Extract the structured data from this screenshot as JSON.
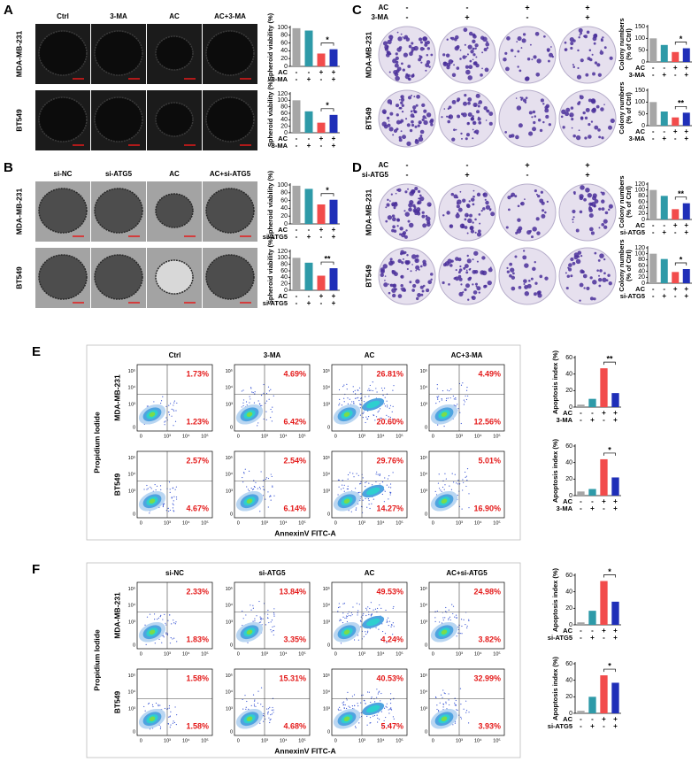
{
  "panels": [
    {
      "label": "A",
      "kind": "spheroid",
      "columns": [
        "Ctrl",
        "3-MA",
        "AC",
        "AC+3-MA"
      ],
      "rows": [
        {
          "name": "MDA-MB-231",
          "chart": {
            "type": "bar",
            "ylabel": "Spheroid viability (%)",
            "ylim": [
              0,
              100
            ],
            "yticks": [
              0,
              20,
              40,
              60,
              80,
              100
            ],
            "values": [
              98,
              92,
              33,
              44
            ],
            "colors": [
              "#a6a6a6",
              "#2e9aa8",
              "#f24c4c",
              "#1f2fb8"
            ],
            "significance": "*",
            "factors": [
              {
                "name": "AC",
                "signs": [
                  "-",
                  "-",
                  "+",
                  "+"
                ]
              },
              {
                "name": "3-MA",
                "signs": [
                  "-",
                  "+",
                  "-",
                  "+"
                ]
              }
            ]
          }
        },
        {
          "name": "BT549",
          "chart": {
            "type": "bar",
            "ylabel": "Spheroid viability (%)",
            "ylim": [
              0,
              120
            ],
            "yticks": [
              0,
              20,
              40,
              60,
              80,
              100,
              120
            ],
            "values": [
              100,
              66,
              31,
              55
            ],
            "colors": [
              "#a6a6a6",
              "#2e9aa8",
              "#f24c4c",
              "#1f2fb8"
            ],
            "significance": "*",
            "factors": [
              {
                "name": "AC",
                "signs": [
                  "-",
                  "-",
                  "+",
                  "+"
                ]
              },
              {
                "name": "3-MA",
                "signs": [
                  "-",
                  "+",
                  "-",
                  "+"
                ]
              }
            ]
          }
        }
      ]
    },
    {
      "label": "B",
      "kind": "spheroid",
      "columns": [
        "si-NC",
        "si-ATG5",
        "AC",
        "AC+si-ATG5"
      ],
      "rows": [
        {
          "name": "MDA-MB-231",
          "chart": {
            "type": "bar",
            "ylabel": "Spheroid viability (%)",
            "ylim": [
              0,
              100
            ],
            "yticks": [
              0,
              20,
              40,
              60,
              80,
              100
            ],
            "values": [
              98,
              90,
              50,
              62
            ],
            "colors": [
              "#a6a6a6",
              "#2e9aa8",
              "#f24c4c",
              "#1f2fb8"
            ],
            "significance": "*",
            "factors": [
              {
                "name": "AC",
                "signs": [
                  "-",
                  "-",
                  "+",
                  "+"
                ]
              },
              {
                "name": "si-ATG5",
                "signs": [
                  "-",
                  "+",
                  "-",
                  "+"
                ]
              }
            ]
          }
        },
        {
          "name": "BT549",
          "chart": {
            "type": "bar",
            "ylabel": "Spheroid viability (%)",
            "ylim": [
              0,
              120
            ],
            "yticks": [
              0,
              20,
              40,
              60,
              80,
              100,
              120
            ],
            "values": [
              100,
              85,
              45,
              68
            ],
            "colors": [
              "#a6a6a6",
              "#2e9aa8",
              "#f24c4c",
              "#1f2fb8"
            ],
            "significance": "**",
            "factors": [
              {
                "name": "AC",
                "signs": [
                  "-",
                  "-",
                  "+",
                  "+"
                ]
              },
              {
                "name": "si-ATG5",
                "signs": [
                  "-",
                  "+",
                  "-",
                  "+"
                ]
              }
            ]
          }
        }
      ]
    },
    {
      "label": "C",
      "kind": "colony",
      "treatments": [
        {
          "name": "AC",
          "signs": [
            "-",
            "-",
            "+",
            "+"
          ]
        },
        {
          "name": "3-MA",
          "signs": [
            "-",
            "+",
            "-",
            "+"
          ]
        }
      ],
      "rows": [
        {
          "name": "MDA-MB-231",
          "chart": {
            "type": "bar",
            "ylabel": [
              "Colony numbers",
              "(% of Ctrl)"
            ],
            "ylim": [
              0,
              150
            ],
            "yticks": [
              0,
              50,
              100,
              150
            ],
            "values": [
              100,
              72,
              42,
              58
            ],
            "colors": [
              "#a6a6a6",
              "#2e9aa8",
              "#f24c4c",
              "#1f2fb8"
            ],
            "significance": "*",
            "factors": [
              {
                "name": "AC",
                "signs": [
                  "-",
                  "-",
                  "+",
                  "+"
                ]
              },
              {
                "name": "3-MA",
                "signs": [
                  "-",
                  "+",
                  "-",
                  "+"
                ]
              }
            ]
          }
        },
        {
          "name": "BT549",
          "chart": {
            "type": "bar",
            "ylabel": [
              "Colony numbers",
              "(% of Ctrl)"
            ],
            "ylim": [
              0,
              150
            ],
            "yticks": [
              0,
              50,
              100,
              150
            ],
            "values": [
              100,
              60,
              35,
              55
            ],
            "colors": [
              "#a6a6a6",
              "#2e9aa8",
              "#f24c4c",
              "#1f2fb8"
            ],
            "significance": "**",
            "factors": [
              {
                "name": "AC",
                "signs": [
                  "-",
                  "-",
                  "+",
                  "+"
                ]
              },
              {
                "name": "3-MA",
                "signs": [
                  "-",
                  "+",
                  "-",
                  "+"
                ]
              }
            ]
          }
        }
      ]
    },
    {
      "label": "D",
      "kind": "colony",
      "treatments": [
        {
          "name": "AC",
          "signs": [
            "-",
            "-",
            "+",
            "+"
          ]
        },
        {
          "name": "si-ATG5",
          "signs": [
            "-",
            "+",
            "-",
            "+"
          ]
        }
      ],
      "rows": [
        {
          "name": "MDA-MB-231",
          "chart": {
            "type": "bar",
            "ylabel": [
              "Colony numbers",
              "(% of Ctrl)"
            ],
            "ylim": [
              0,
              120
            ],
            "yticks": [
              0,
              20,
              40,
              60,
              80,
              100,
              120
            ],
            "values": [
              100,
              80,
              35,
              55
            ],
            "colors": [
              "#a6a6a6",
              "#2e9aa8",
              "#f24c4c",
              "#1f2fb8"
            ],
            "significance": "**",
            "factors": [
              {
                "name": "AC",
                "signs": [
                  "-",
                  "-",
                  "+",
                  "+"
                ]
              },
              {
                "name": "si-ATG5",
                "signs": [
                  "-",
                  "+",
                  "-",
                  "+"
                ]
              }
            ]
          }
        },
        {
          "name": "BT549",
          "chart": {
            "type": "bar",
            "ylabel": [
              "Colony numbers",
              "(% of Ctrl)"
            ],
            "ylim": [
              0,
              120
            ],
            "yticks": [
              0,
              20,
              40,
              60,
              80,
              100,
              120
            ],
            "values": [
              100,
              82,
              38,
              48
            ],
            "colors": [
              "#a6a6a6",
              "#2e9aa8",
              "#f24c4c",
              "#1f2fb8"
            ],
            "significance": "*",
            "factors": [
              {
                "name": "AC",
                "signs": [
                  "-",
                  "-",
                  "+",
                  "+"
                ]
              },
              {
                "name": "si-ATG5",
                "signs": [
                  "-",
                  "+",
                  "-",
                  "+"
                ]
              }
            ]
          }
        }
      ]
    },
    {
      "label": "E",
      "kind": "flow",
      "columns": [
        "Ctrl",
        "3-MA",
        "AC",
        "AC+3-MA"
      ],
      "y_title": "Propidium Iodide",
      "x_title": "AnnexinV FITC-A",
      "axis_ticks": [
        "0",
        "10³",
        "10⁴",
        "10⁵"
      ],
      "rows": [
        {
          "name": "MDA-MB-231",
          "upper_right": [
            "1.73%",
            "4.69%",
            "26.81%",
            "4.49%"
          ],
          "lower_right": [
            "1.23%",
            "6.42%",
            "20.60%",
            "12.56%"
          ],
          "chart": {
            "type": "bar",
            "ylabel": "Apoptosis index (%)",
            "ylim": [
              0,
              60
            ],
            "yticks": [
              0,
              20,
              40,
              60
            ],
            "values": [
              3,
              10,
              47,
              17
            ],
            "colors": [
              "#a6a6a6",
              "#2e9aa8",
              "#f24c4c",
              "#1f2fb8"
            ],
            "significance": "**",
            "factors": [
              {
                "name": "AC",
                "signs": [
                  "-",
                  "-",
                  "+",
                  "+"
                ]
              },
              {
                "name": "3-MA",
                "signs": [
                  "-",
                  "+",
                  "-",
                  "+"
                ]
              }
            ]
          }
        },
        {
          "name": "BT549",
          "upper_right": [
            "2.57%",
            "2.54%",
            "29.76%",
            "5.01%"
          ],
          "lower_right": [
            "4.67%",
            "6.14%",
            "14.27%",
            "16.90%"
          ],
          "chart": {
            "type": "bar",
            "ylabel": "Apoptosis index (%)",
            "ylim": [
              0,
              60
            ],
            "yticks": [
              0,
              20,
              40,
              60
            ],
            "values": [
              5,
              8,
              44,
              22
            ],
            "colors": [
              "#a6a6a6",
              "#2e9aa8",
              "#f24c4c",
              "#1f2fb8"
            ],
            "significance": "*",
            "factors": [
              {
                "name": "AC",
                "signs": [
                  "-",
                  "-",
                  "+",
                  "+"
                ]
              },
              {
                "name": "3-MA",
                "signs": [
                  "-",
                  "+",
                  "-",
                  "+"
                ]
              }
            ]
          }
        }
      ]
    },
    {
      "label": "F",
      "kind": "flow",
      "columns": [
        "si-NC",
        "si-ATG5",
        "AC",
        "AC+si-ATG5"
      ],
      "y_title": "Propidium Iodide",
      "x_title": "AnnexinV FITC-A",
      "axis_ticks": [
        "0",
        "10³",
        "10⁴",
        "10⁵"
      ],
      "rows": [
        {
          "name": "MDA-MB-231",
          "upper_right": [
            "2.33%",
            "13.84%",
            "49.53%",
            "24.98%"
          ],
          "lower_right": [
            "1.83%",
            "3.35%",
            "4.24%",
            "3.82%"
          ],
          "chart": {
            "type": "bar",
            "ylabel": "Apoptosis index (%)",
            "ylim": [
              0,
              60
            ],
            "yticks": [
              0,
              20,
              40,
              60
            ],
            "values": [
              3,
              17,
              53,
              28
            ],
            "colors": [
              "#a6a6a6",
              "#2e9aa8",
              "#f24c4c",
              "#1f2fb8"
            ],
            "significance": "*",
            "factors": [
              {
                "name": "AC",
                "signs": [
                  "-",
                  "-",
                  "+",
                  "+"
                ]
              },
              {
                "name": "si-ATG5",
                "signs": [
                  "-",
                  "+",
                  "-",
                  "+"
                ]
              }
            ]
          }
        },
        {
          "name": "BT549",
          "upper_right": [
            "1.58%",
            "15.31%",
            "40.53%",
            "32.99%"
          ],
          "lower_right": [
            "1.58%",
            "4.68%",
            "5.47%",
            "3.93%"
          ],
          "chart": {
            "type": "bar",
            "ylabel": "Apoptosis index (%)",
            "ylim": [
              0,
              60
            ],
            "yticks": [
              0,
              20,
              40,
              60
            ],
            "values": [
              3,
              20,
              46,
              37
            ],
            "colors": [
              "#a6a6a6",
              "#2e9aa8",
              "#f24c4c",
              "#1f2fb8"
            ],
            "significance": "*",
            "factors": [
              {
                "name": "AC",
                "signs": [
                  "-",
                  "-",
                  "+",
                  "+"
                ]
              },
              {
                "name": "si-ATG5",
                "signs": [
                  "-",
                  "+",
                  "-",
                  "+"
                ]
              }
            ]
          }
        }
      ]
    }
  ]
}
